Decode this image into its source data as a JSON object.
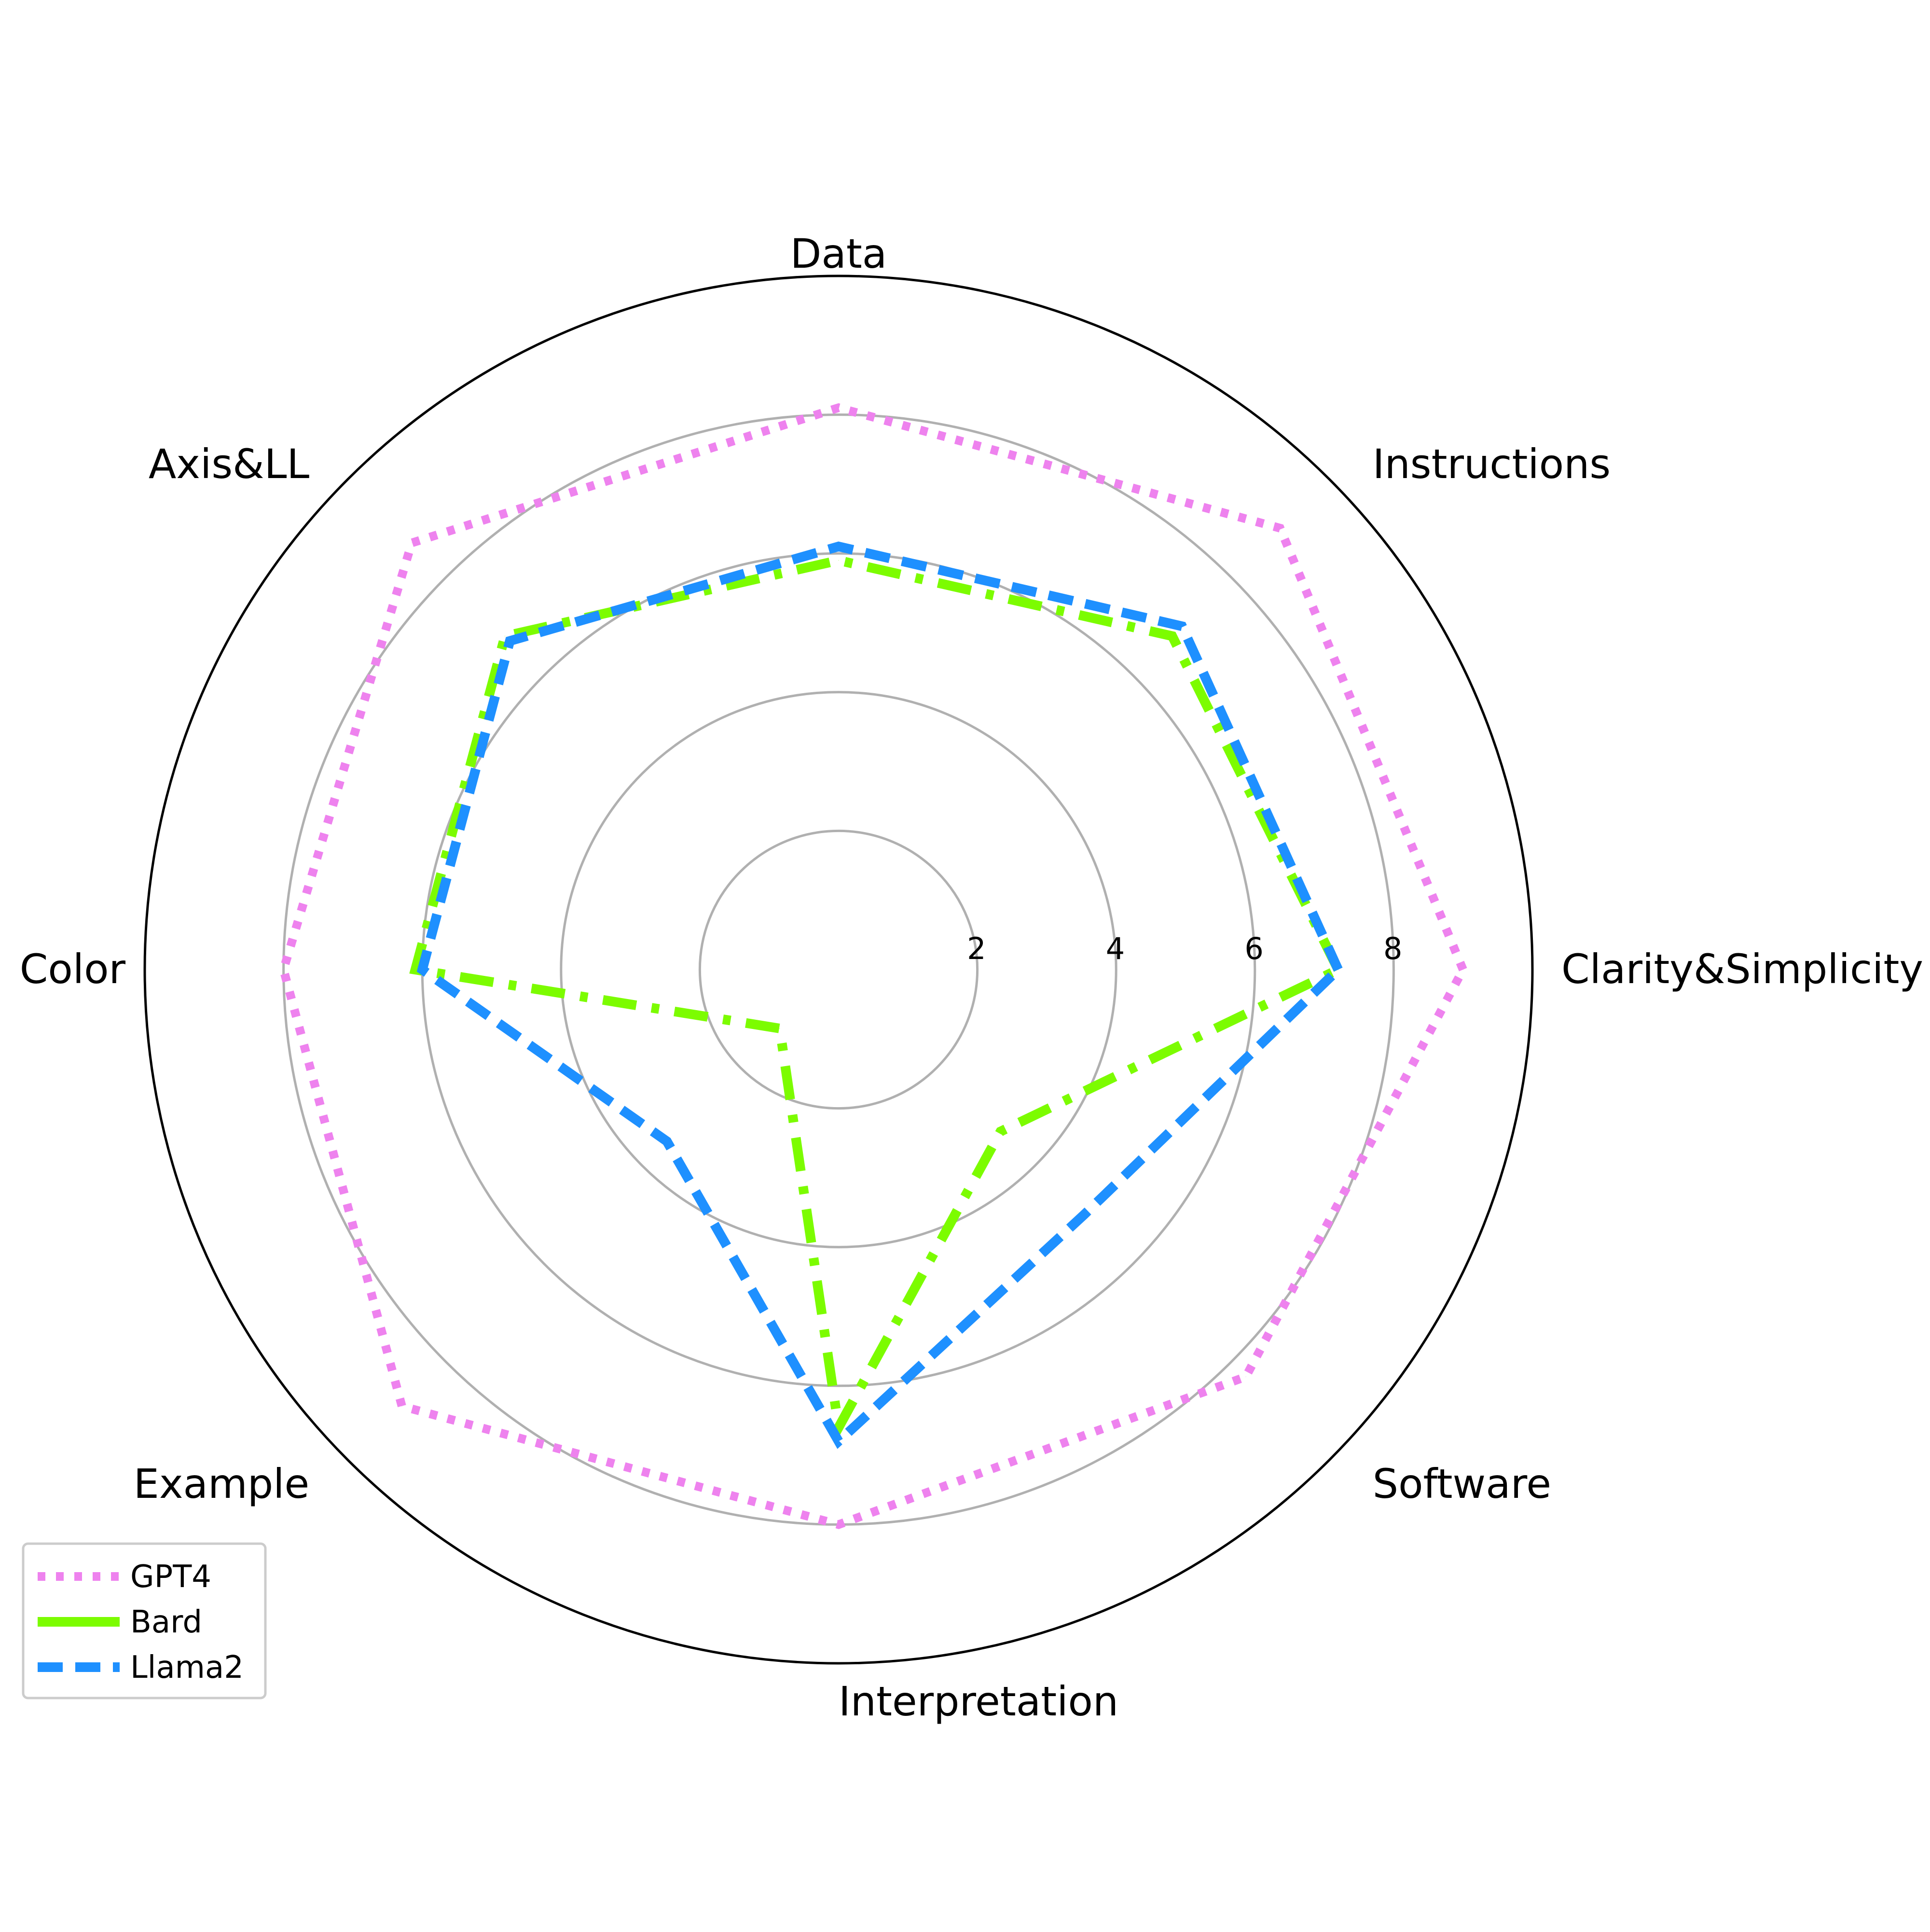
{
  "chart_data": {
    "type": "radar",
    "categories": [
      "Clarity&Simplicity",
      "Instructions",
      "Data",
      "Axis&LL",
      "Color",
      "Example",
      "Interpretation",
      "Software"
    ],
    "radial_ticks": [
      "2",
      "4",
      "6",
      "8"
    ],
    "rmax": 10,
    "grid": true,
    "legend_position": "lower-left",
    "series": [
      {
        "name": "GPT4",
        "values": [
          9.0,
          9.0,
          8.1,
          8.7,
          8.0,
          8.9,
          8.0,
          8.3
        ],
        "color": "#ee82ee",
        "style": "dotted"
      },
      {
        "name": "Bard",
        "values": [
          7.2,
          6.8,
          5.9,
          6.8,
          6.1,
          1.2,
          6.6,
          3.3
        ],
        "color": "#7cfc00",
        "style": "dashdot"
      },
      {
        "name": "Llama2",
        "values": [
          7.2,
          7.0,
          6.1,
          6.7,
          6.0,
          3.5,
          6.8,
          5.0
        ],
        "color": "#1e90ff",
        "style": "dashed"
      }
    ]
  }
}
